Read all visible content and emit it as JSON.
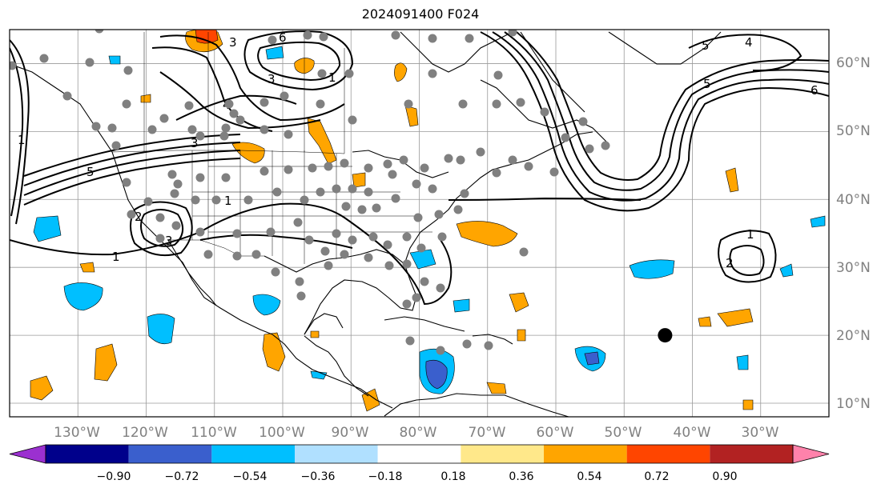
{
  "title": "2024091400 F024",
  "map": {
    "projection": "equirectangular",
    "lon_range": [
      -140,
      -20
    ],
    "lat_range": [
      8,
      65
    ],
    "grid": true,
    "lon_labels": [
      "130°W",
      "120°W",
      "110°W",
      "100°W",
      "90°W",
      "80°W",
      "70°W",
      "60°W",
      "50°W",
      "40°W",
      "30°W"
    ],
    "lat_labels": [
      "10°N",
      "20°N",
      "30°N",
      "40°N",
      "50°N",
      "60°N"
    ],
    "lon_ticks": [
      -130,
      -120,
      -110,
      -100,
      -90,
      -80,
      -70,
      -60,
      -50,
      -40,
      -30
    ],
    "lat_ticks": [
      10,
      20,
      30,
      40,
      50,
      60
    ],
    "marker": {
      "lon": -44,
      "lat": 20,
      "color": "#000000"
    },
    "contour_labels": [
      "1",
      "1",
      "1",
      "1",
      "1",
      "2",
      "2",
      "3",
      "3",
      "3",
      "3",
      "4",
      "4",
      "5",
      "5",
      "5",
      "6",
      "6"
    ],
    "colors": {
      "station_dots": "#808080",
      "contours": "#000000",
      "coast": "#000000"
    }
  },
  "colorbar": {
    "ticks": [
      "−0.90",
      "−0.72",
      "−0.54",
      "−0.36",
      "−0.18",
      "0.18",
      "0.36",
      "0.54",
      "0.72",
      "0.90"
    ],
    "colors": [
      "#9b30d0",
      "#00008b",
      "#3a5fcd",
      "#00bfff",
      "#b0e0ff",
      "#ffffff",
      "#ffe88a",
      "#ffa500",
      "#ff4500",
      "#b22222",
      "#ff82ab"
    ]
  }
}
